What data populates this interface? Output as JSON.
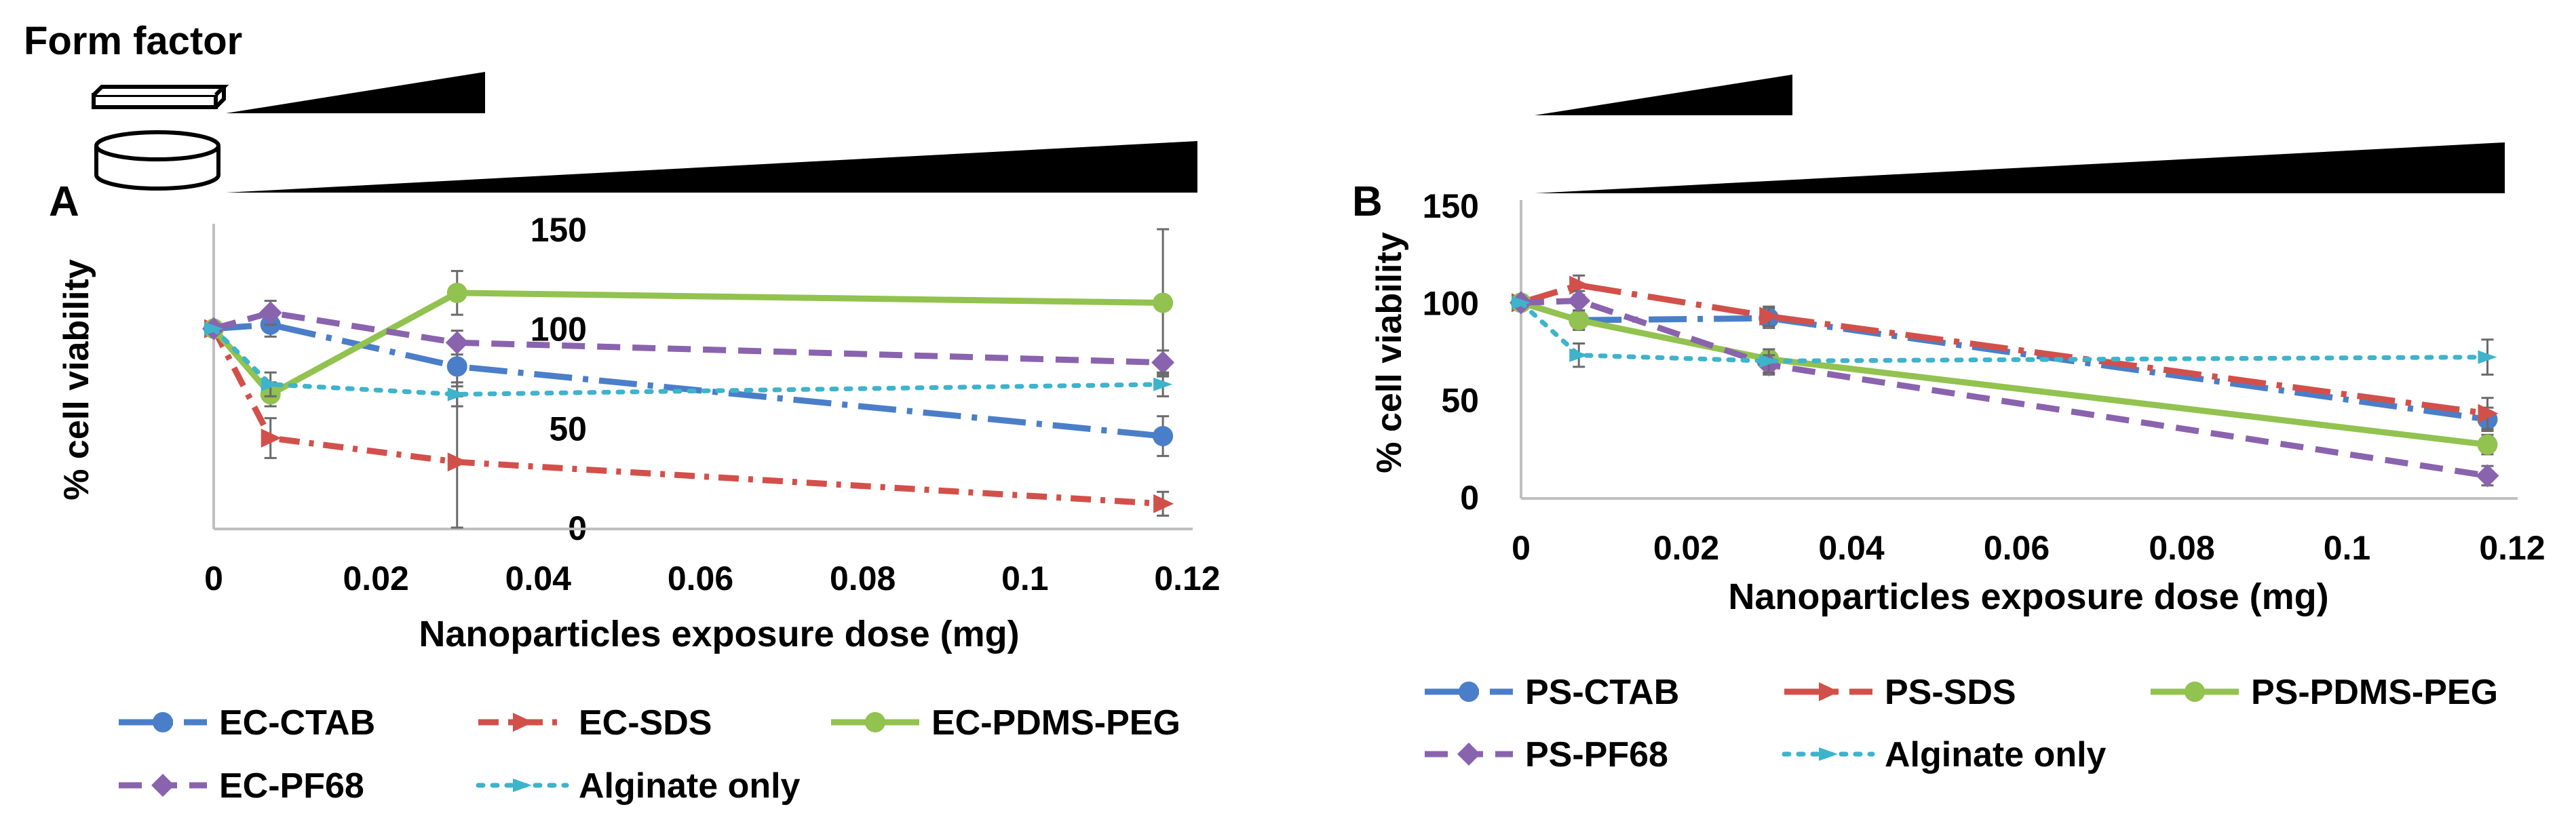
{
  "figure": {
    "form_factor_label": "Form factor",
    "icons": [
      "flat-slab-icon",
      "cylinder-disc-icon"
    ]
  },
  "chart_data": [
    {
      "type": "line",
      "panel_label": "A",
      "xlabel": "Nanoparticles exposure dose (mg)",
      "ylabel": "% cell viability",
      "xlim": [
        0,
        0.12
      ],
      "ylim": [
        0,
        150
      ],
      "xticks": [
        "0",
        "0.02",
        "0.04",
        "0.06",
        "0.08",
        "0.1",
        "0.12"
      ],
      "yticks": [
        "0",
        "50",
        "100",
        "150"
      ],
      "grid": false,
      "legend_position": "bottom",
      "series": [
        {
          "name": "EC-CTAB",
          "color": "#4a7ec9",
          "dash": "long-dash-dot",
          "marker": "circle",
          "x": [
            0,
            0.007,
            0.03,
            0.117
          ],
          "y": [
            100,
            102,
            81,
            46
          ],
          "err": [
            0,
            6,
            10,
            10
          ]
        },
        {
          "name": "EC-SDS",
          "color": "#d2504a",
          "dash": "dash-dot",
          "marker": "triangle",
          "x": [
            0,
            0.007,
            0.03,
            0.117
          ],
          "y": [
            100,
            45,
            33,
            12
          ],
          "err": [
            0,
            10,
            33,
            6
          ]
        },
        {
          "name": "EC-PDMS-PEG",
          "color": "#92c24f",
          "dash": "solid",
          "marker": "circle",
          "x": [
            0,
            0.007,
            0.03,
            0.117
          ],
          "y": [
            100,
            67,
            118,
            113
          ],
          "err": [
            0,
            6,
            11,
            37
          ]
        },
        {
          "name": "EC-PF68",
          "color": "#8a63ae",
          "dash": "dash",
          "marker": "diamond",
          "x": [
            0,
            0.007,
            0.03,
            0.117
          ],
          "y": [
            100,
            108,
            93,
            83
          ],
          "err": [
            0,
            6,
            6,
            6
          ]
        },
        {
          "name": "Alginate only",
          "color": "#3eb3cc",
          "dash": "dot",
          "marker": "tick",
          "x": [
            0,
            0.007,
            0.03,
            0.117
          ],
          "y": [
            100,
            72,
            67,
            72
          ],
          "err": [
            0,
            6,
            6,
            6
          ]
        }
      ]
    },
    {
      "type": "line",
      "panel_label": "B",
      "xlabel": "Nanoparticles exposure dose (mg)",
      "ylabel": "% cell viability",
      "xlim": [
        0,
        0.12
      ],
      "ylim": [
        0,
        150
      ],
      "xticks": [
        "0",
        "0.02",
        "0.04",
        "0.06",
        "0.08",
        "0.1",
        "0.12"
      ],
      "yticks": [
        "0",
        "50",
        "100",
        "150"
      ],
      "grid": false,
      "legend_position": "bottom",
      "series": [
        {
          "name": "PS-CTAB",
          "color": "#4a7ec9",
          "dash": "long-dash-dot",
          "marker": "circle",
          "x": [
            0,
            0.007,
            0.03,
            0.117
          ],
          "y": [
            100,
            91,
            92,
            40
          ],
          "err": [
            0,
            4,
            5,
            6
          ]
        },
        {
          "name": "PS-SDS",
          "color": "#d2504a",
          "dash": "long-dash-dot",
          "marker": "triangle",
          "x": [
            0,
            0.007,
            0.03,
            0.117
          ],
          "y": [
            100,
            109,
            93,
            43
          ],
          "err": [
            0,
            5,
            5,
            8
          ]
        },
        {
          "name": "PS-PDMS-PEG",
          "color": "#92c24f",
          "dash": "solid",
          "marker": "circle",
          "x": [
            0,
            0.007,
            0.03,
            0.117
          ],
          "y": [
            100,
            91,
            71,
            27
          ],
          "err": [
            0,
            5,
            5,
            5
          ]
        },
        {
          "name": "PS-PF68",
          "color": "#8a63ae",
          "dash": "dash",
          "marker": "diamond",
          "x": [
            0,
            0.007,
            0.03,
            0.117
          ],
          "y": [
            100,
            101,
            68,
            11
          ],
          "err": [
            0,
            5,
            5,
            5
          ]
        },
        {
          "name": "Alginate only",
          "color": "#3eb3cc",
          "dash": "dot",
          "marker": "tick",
          "x": [
            0,
            0.007,
            0.03,
            0.117
          ],
          "y": [
            100,
            73,
            70,
            72
          ],
          "err": [
            0,
            6,
            6,
            9
          ]
        }
      ]
    }
  ]
}
